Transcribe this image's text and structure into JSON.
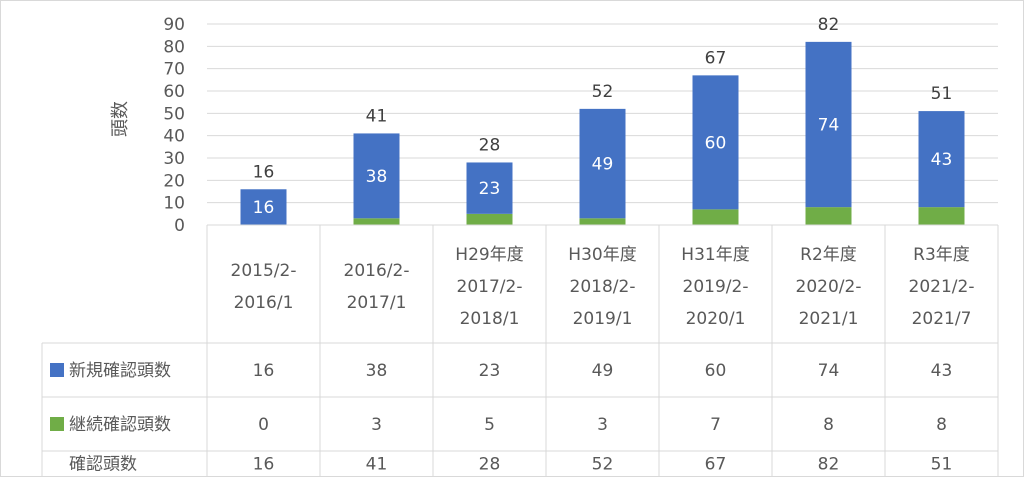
{
  "chart_data": {
    "type": "bar",
    "stacked": true,
    "ylabel": "頭数",
    "ylim": [
      0,
      90
    ],
    "yticks": [
      0,
      10,
      20,
      30,
      40,
      50,
      60,
      70,
      80,
      90
    ],
    "grid": true,
    "categories": [
      [
        "2015/2-",
        "2016/1"
      ],
      [
        "2016/2-",
        "2017/1"
      ],
      [
        "H29年度",
        "2017/2-",
        "2018/1"
      ],
      [
        "H30年度",
        "2018/2-",
        "2019/1"
      ],
      [
        "H31年度",
        "2019/2-",
        "2020/1"
      ],
      [
        "R2年度",
        "2020/2-",
        "2021/1"
      ],
      [
        "R3年度",
        "2021/2-",
        "2021/7"
      ]
    ],
    "series": [
      {
        "name": "新規確認頭数",
        "values": [
          16,
          38,
          23,
          49,
          60,
          74,
          43
        ],
        "color": "#4472c4"
      },
      {
        "name": "継続確認頭数",
        "values": [
          0,
          3,
          5,
          3,
          7,
          8,
          8
        ],
        "color": "#70ad47"
      }
    ],
    "totals": {
      "name": "確認頭数",
      "values": [
        16,
        41,
        28,
        52,
        67,
        82,
        51
      ]
    },
    "legend": "data-table"
  }
}
